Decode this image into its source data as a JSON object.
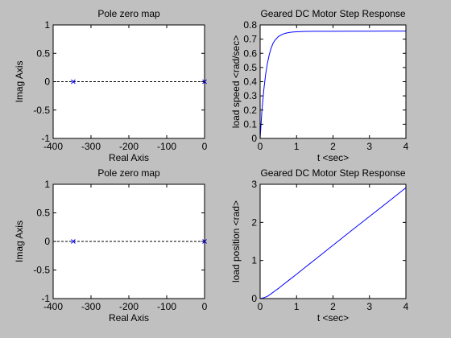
{
  "figure": {
    "background": "#c0c0c0",
    "axes_background": "#ffffff",
    "line_color": "#0000ff"
  },
  "chart_data": [
    {
      "type": "scatter",
      "title": "Pole zero map",
      "xlabel": "Real Axis",
      "ylabel": "Imag Axis",
      "xlim": [
        -400,
        0
      ],
      "ylim": [
        -1,
        1
      ],
      "xticks": [
        -400,
        -300,
        -200,
        -100,
        0
      ],
      "xtick_labels": [
        "-400",
        "-300",
        "-200",
        "-100",
        "0"
      ],
      "yticks": [
        -1,
        -0.5,
        0,
        0.5,
        1
      ],
      "ytick_labels": [
        "-1",
        "-0.5",
        "0",
        "0.5",
        "1"
      ],
      "grid": false,
      "reference_line": {
        "y": 0,
        "style": "dotted"
      },
      "points": [
        {
          "x": -347,
          "y": 0,
          "marker": "x"
        },
        {
          "x": 0,
          "y": 0,
          "marker": "x"
        }
      ]
    },
    {
      "type": "line",
      "title": "Geared DC Motor Step Response",
      "xlabel": "t <sec>",
      "ylabel": "load speed <rad/sec>",
      "xlim": [
        0,
        4
      ],
      "ylim": [
        0,
        0.8
      ],
      "xticks": [
        0,
        1,
        2,
        3,
        4
      ],
      "xtick_labels": [
        "0",
        "1",
        "2",
        "3",
        "4"
      ],
      "yticks": [
        0,
        0.1,
        0.2,
        0.3,
        0.4,
        0.5,
        0.6,
        0.7,
        0.8
      ],
      "ytick_labels": [
        "0",
        "0.1",
        "0.2",
        "0.3",
        "0.4",
        "0.5",
        "0.6",
        "0.7",
        "0.8"
      ],
      "grid": false,
      "series": [
        {
          "x": [
            0,
            0.02,
            0.05,
            0.1,
            0.15,
            0.2,
            0.25,
            0.3,
            0.35,
            0.4,
            0.5,
            0.6,
            0.7,
            0.8,
            0.9,
            1.0,
            1.1,
            1.2,
            1.5,
            2.0,
            2.5,
            3.0,
            3.5,
            4.0
          ],
          "y": [
            0,
            0.08,
            0.2,
            0.34,
            0.45,
            0.53,
            0.59,
            0.635,
            0.668,
            0.69,
            0.718,
            0.733,
            0.742,
            0.747,
            0.75,
            0.752,
            0.753,
            0.754,
            0.755,
            0.755,
            0.756,
            0.756,
            0.757,
            0.757
          ]
        }
      ]
    },
    {
      "type": "scatter",
      "title": "Pole zero map",
      "xlabel": "Real Axis",
      "ylabel": "Imag Axis",
      "xlim": [
        -400,
        0
      ],
      "ylim": [
        -1,
        1
      ],
      "xticks": [
        -400,
        -300,
        -200,
        -100,
        0
      ],
      "xtick_labels": [
        "-400",
        "-300",
        "-200",
        "-100",
        "0"
      ],
      "yticks": [
        -1,
        -0.5,
        0,
        0.5,
        1
      ],
      "ytick_labels": [
        "-1",
        "-0.5",
        "0",
        "0.5",
        "1"
      ],
      "grid": false,
      "reference_line": {
        "y": 0,
        "style": "dotted"
      },
      "points": [
        {
          "x": -347,
          "y": 0,
          "marker": "x"
        },
        {
          "x": 0,
          "y": 0,
          "marker": "x"
        }
      ]
    },
    {
      "type": "line",
      "title": "Geared DC Motor Step Response",
      "xlabel": "t <sec>",
      "ylabel": "load position <rad>",
      "xlim": [
        0,
        4
      ],
      "ylim": [
        0,
        3
      ],
      "xticks": [
        0,
        1,
        2,
        3,
        4
      ],
      "xtick_labels": [
        "0",
        "1",
        "2",
        "3",
        "4"
      ],
      "yticks": [
        0,
        1,
        2,
        3
      ],
      "ytick_labels": [
        "0",
        "1",
        "2",
        "3"
      ],
      "grid": false,
      "series": [
        {
          "x": [
            0,
            0.1,
            0.2,
            0.3,
            0.4,
            0.5,
            0.6,
            0.8,
            1.0,
            1.5,
            2.0,
            2.5,
            3.0,
            3.5,
            4.0
          ],
          "y": [
            0,
            0.02,
            0.06,
            0.125,
            0.195,
            0.265,
            0.34,
            0.49,
            0.64,
            1.02,
            1.4,
            1.78,
            2.155,
            2.53,
            2.91
          ]
        }
      ]
    }
  ]
}
